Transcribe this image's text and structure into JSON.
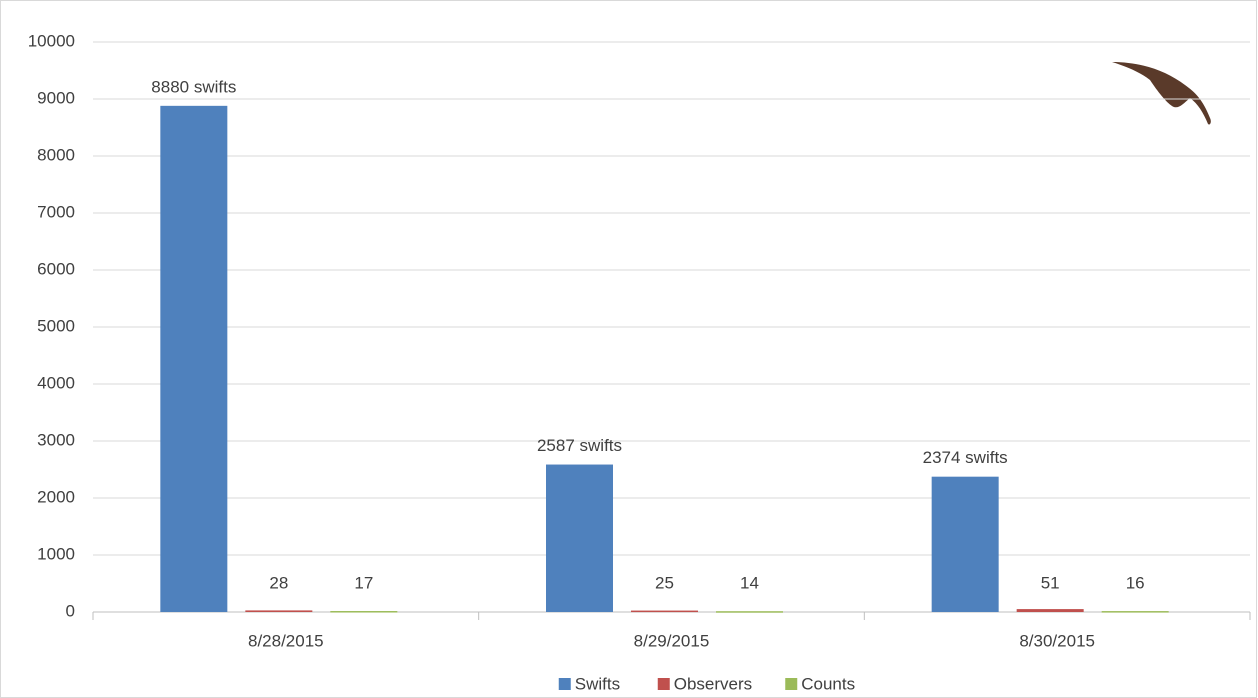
{
  "chart_data": {
    "type": "bar",
    "categories": [
      "8/28/2015",
      "8/29/2015",
      "8/30/2015"
    ],
    "series": [
      {
        "name": "Swifts",
        "color": "#4f81bd",
        "values": [
          8880,
          2587,
          2374
        ],
        "value_labels": [
          "8880 swifts",
          "2587 swifts",
          "2374 swifts"
        ]
      },
      {
        "name": "Observers",
        "color": "#c0504d",
        "values": [
          28,
          25,
          51
        ]
      },
      {
        "name": "Counts",
        "color": "#9bbb59",
        "values": [
          17,
          14,
          16
        ]
      }
    ],
    "ylim": [
      0,
      10000
    ],
    "yticks": [
      0,
      1000,
      2000,
      3000,
      4000,
      5000,
      6000,
      7000,
      8000,
      9000,
      10000
    ],
    "grid": true,
    "legend": "bottom"
  }
}
